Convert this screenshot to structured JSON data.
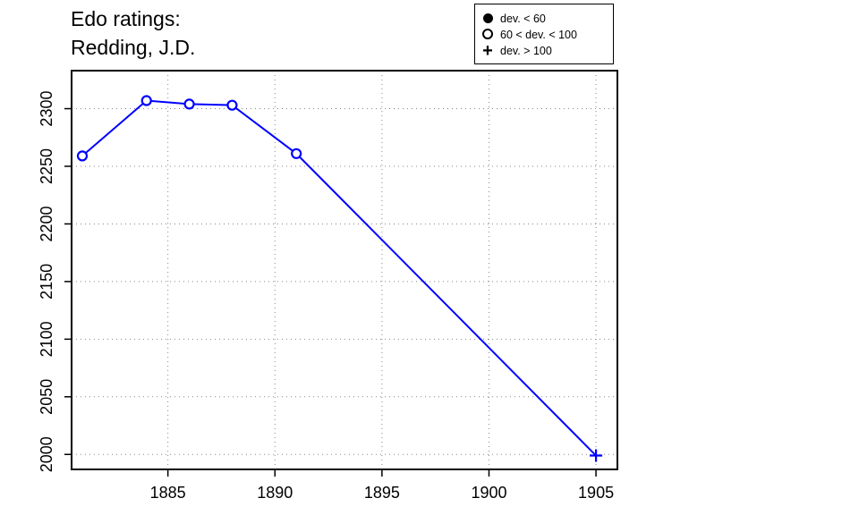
{
  "title_lines": [
    "Edo ratings:",
    "Redding, J.D."
  ],
  "legend": [
    {
      "symbol": "filled-circle",
      "label": "dev. < 60"
    },
    {
      "symbol": "open-circle",
      "label": "60 < dev. < 100"
    },
    {
      "symbol": "plus",
      "label": "dev. > 100"
    }
  ],
  "colors": {
    "series": "#0000ff",
    "grid": "#888888",
    "axis": "#000000"
  },
  "chart_data": {
    "type": "line",
    "xlabel": "",
    "ylabel": "",
    "xlim": [
      1880.5,
      1906
    ],
    "ylim": [
      1987,
      2333
    ],
    "xticks": [
      1885,
      1890,
      1895,
      1900,
      1905
    ],
    "yticks": [
      2000,
      2050,
      2100,
      2150,
      2200,
      2250,
      2300
    ],
    "grid": true,
    "legend_position": "top-right",
    "series": [
      {
        "points": [
          {
            "x": 1881,
            "y": 2259,
            "dev": "60 < dev. < 100"
          },
          {
            "x": 1884,
            "y": 2307,
            "dev": "60 < dev. < 100"
          },
          {
            "x": 1886,
            "y": 2304,
            "dev": "60 < dev. < 100"
          },
          {
            "x": 1888,
            "y": 2303,
            "dev": "60 < dev. < 100"
          },
          {
            "x": 1891,
            "y": 2261,
            "dev": "60 < dev. < 100"
          },
          {
            "x": 1905,
            "y": 1999,
            "dev": "dev. > 100"
          }
        ]
      }
    ]
  }
}
